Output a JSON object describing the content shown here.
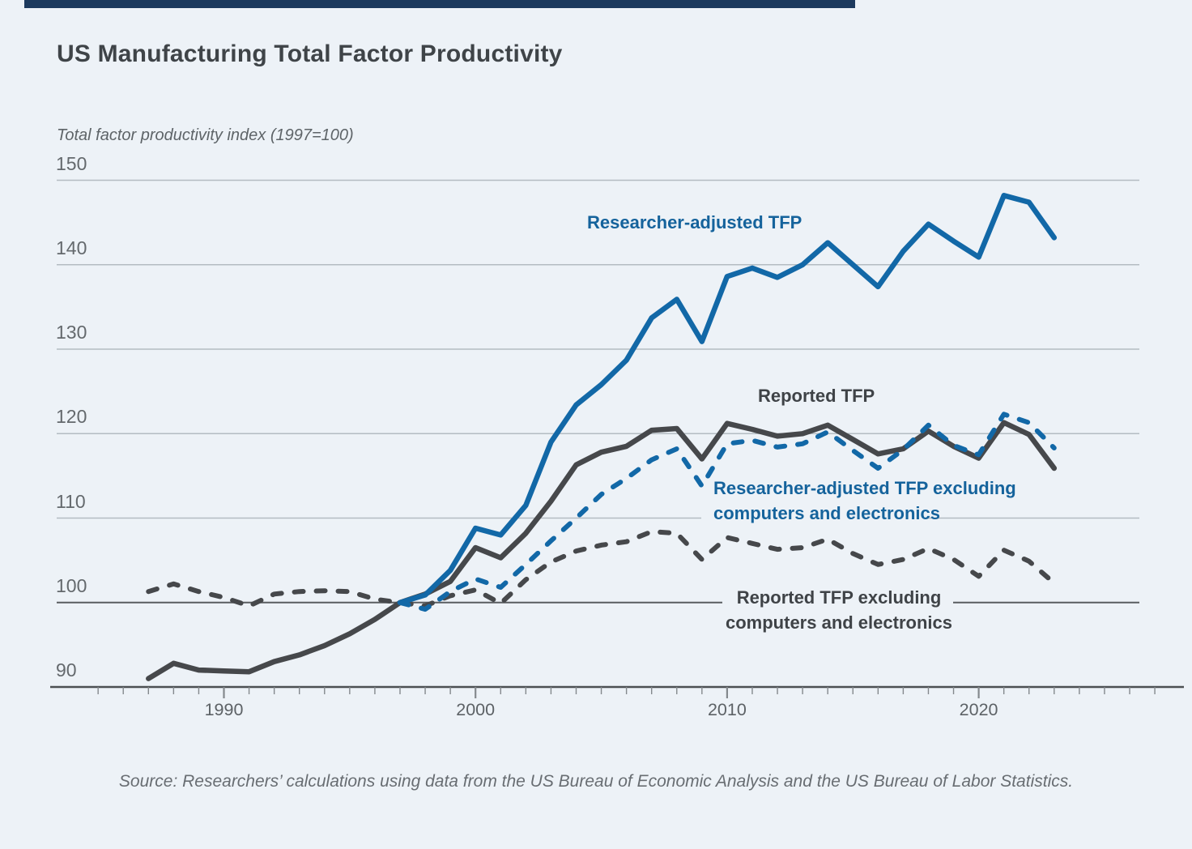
{
  "header": {
    "title": "US Manufacturing Total Factor Productivity",
    "subtitle": "Total factor productivity index (1997=100)"
  },
  "source_note": "Source: Researchers’ calculations using data from the US Bureau of Economic Analysis and the US Bureau of Labor Statistics.",
  "colors": {
    "background": "#edf2f7",
    "accent_bar": "#1d3a5e",
    "blue_series": "#1268a7",
    "dark_series": "#46484b",
    "blue_label": "#15639c",
    "dark_label": "#3f4347",
    "gridline": "#b4bcc2",
    "baseline_100": "#595d60",
    "axis": "#4c5053"
  },
  "series_labels": {
    "researcher": "Researcher-adjusted TFP",
    "reported": "Reported TFP",
    "researcher_excl_line1": "Researcher-adjusted TFP excluding",
    "researcher_excl_line2": "computers and electronics",
    "reported_excl_line1": "Reported TFP excluding",
    "reported_excl_line2": "computers and electronics"
  },
  "chart_data": {
    "type": "line",
    "title": "US Manufacturing Total Factor Productivity",
    "ylabel": "Total factor productivity index (1997=100)",
    "xlabel": "",
    "ylim": [
      90,
      150
    ],
    "yticks": [
      90,
      100,
      110,
      120,
      130,
      140,
      150
    ],
    "xticks": [
      1990,
      2000,
      2010,
      2020
    ],
    "x_range_years": [
      1987,
      2023
    ],
    "grid": true,
    "legend_position": "inline-annotations",
    "emphasized_gridline_value": 100,
    "series": [
      {
        "name": "Reported TFP excluding computers and electronics",
        "style": "dashed",
        "color": "#46484b",
        "start_year": 1987,
        "values": [
          101.3,
          102.2,
          101.3,
          100.6,
          99.6,
          101.0,
          101.3,
          101.4,
          101.3,
          100.4,
          100.0,
          99.6,
          100.8,
          101.5,
          99.9,
          102.7,
          104.8,
          106.1,
          106.8,
          107.2,
          108.4,
          108.2,
          105.1,
          107.7,
          107.0,
          106.3,
          106.5,
          107.5,
          105.8,
          104.5,
          105.1,
          106.4,
          105.1,
          103.1,
          106.2,
          104.9,
          102.3
        ]
      },
      {
        "name": "Reported TFP",
        "style": "solid",
        "color": "#46484b",
        "start_year": 1987,
        "values": [
          91.0,
          92.8,
          92.0,
          91.9,
          91.8,
          93.0,
          93.8,
          94.9,
          96.3,
          98.0,
          100.0,
          101.0,
          102.5,
          106.5,
          105.3,
          108.2,
          112.0,
          116.3,
          117.8,
          118.5,
          120.4,
          120.6,
          117.0,
          121.2,
          120.5,
          119.7,
          120.0,
          121.0,
          119.3,
          117.6,
          118.2,
          120.3,
          118.5,
          117.1,
          121.3,
          119.9,
          115.9
        ]
      },
      {
        "name": "Researcher-adjusted TFP excluding computers and electronics",
        "style": "dashed",
        "color": "#1268a7",
        "start_year": 1997,
        "values": [
          100.0,
          99.2,
          101.3,
          102.8,
          101.8,
          104.5,
          107.3,
          110.0,
          112.8,
          114.7,
          116.9,
          118.2,
          113.8,
          118.8,
          119.2,
          118.4,
          118.8,
          120.2,
          118.0,
          115.9,
          118.1,
          121.0,
          118.6,
          117.5,
          122.3,
          121.3,
          118.3
        ]
      },
      {
        "name": "Researcher-adjusted TFP",
        "style": "solid",
        "color": "#1268a7",
        "start_year": 1997,
        "values": [
          100.0,
          100.9,
          103.8,
          108.8,
          108.0,
          111.5,
          119.0,
          123.4,
          125.8,
          128.7,
          133.7,
          135.9,
          130.9,
          138.6,
          139.6,
          138.5,
          140.0,
          142.6,
          140.0,
          137.4,
          141.6,
          144.8,
          142.8,
          140.9,
          148.2,
          147.4,
          143.2
        ]
      }
    ]
  }
}
